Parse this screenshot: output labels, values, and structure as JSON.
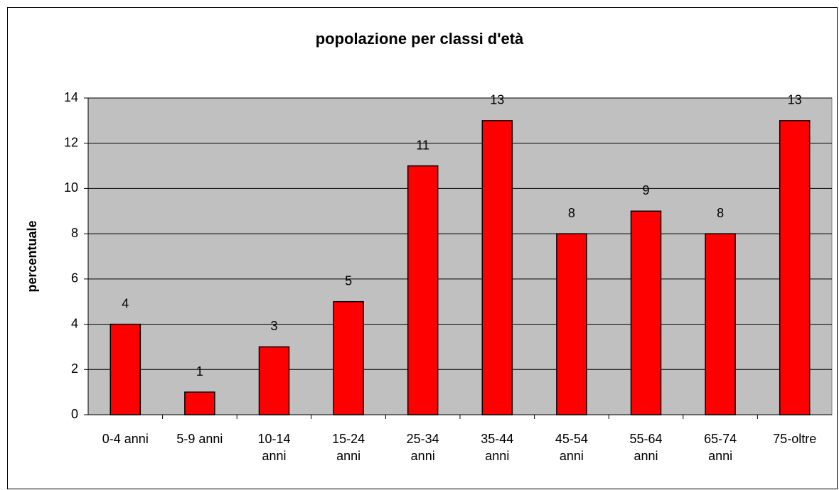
{
  "chart_data": {
    "type": "bar",
    "title": "popolazione per classi d'età",
    "y_label": "percentuale",
    "categories": [
      "0-4 anni",
      "5-9 anni",
      "10-14 anni",
      "15-24 anni",
      "25-34 anni",
      "35-44 anni",
      "45-54 anni",
      "55-64 anni",
      "65-74 anni",
      "75-oltre"
    ],
    "values": [
      4,
      1,
      3,
      5,
      11,
      13,
      8,
      9,
      8,
      13
    ],
    "color": "#ff0000",
    "ylim": [
      0,
      14
    ],
    "yticks": [
      0,
      2,
      4,
      6,
      8,
      10,
      12,
      14
    ],
    "grid": true
  }
}
